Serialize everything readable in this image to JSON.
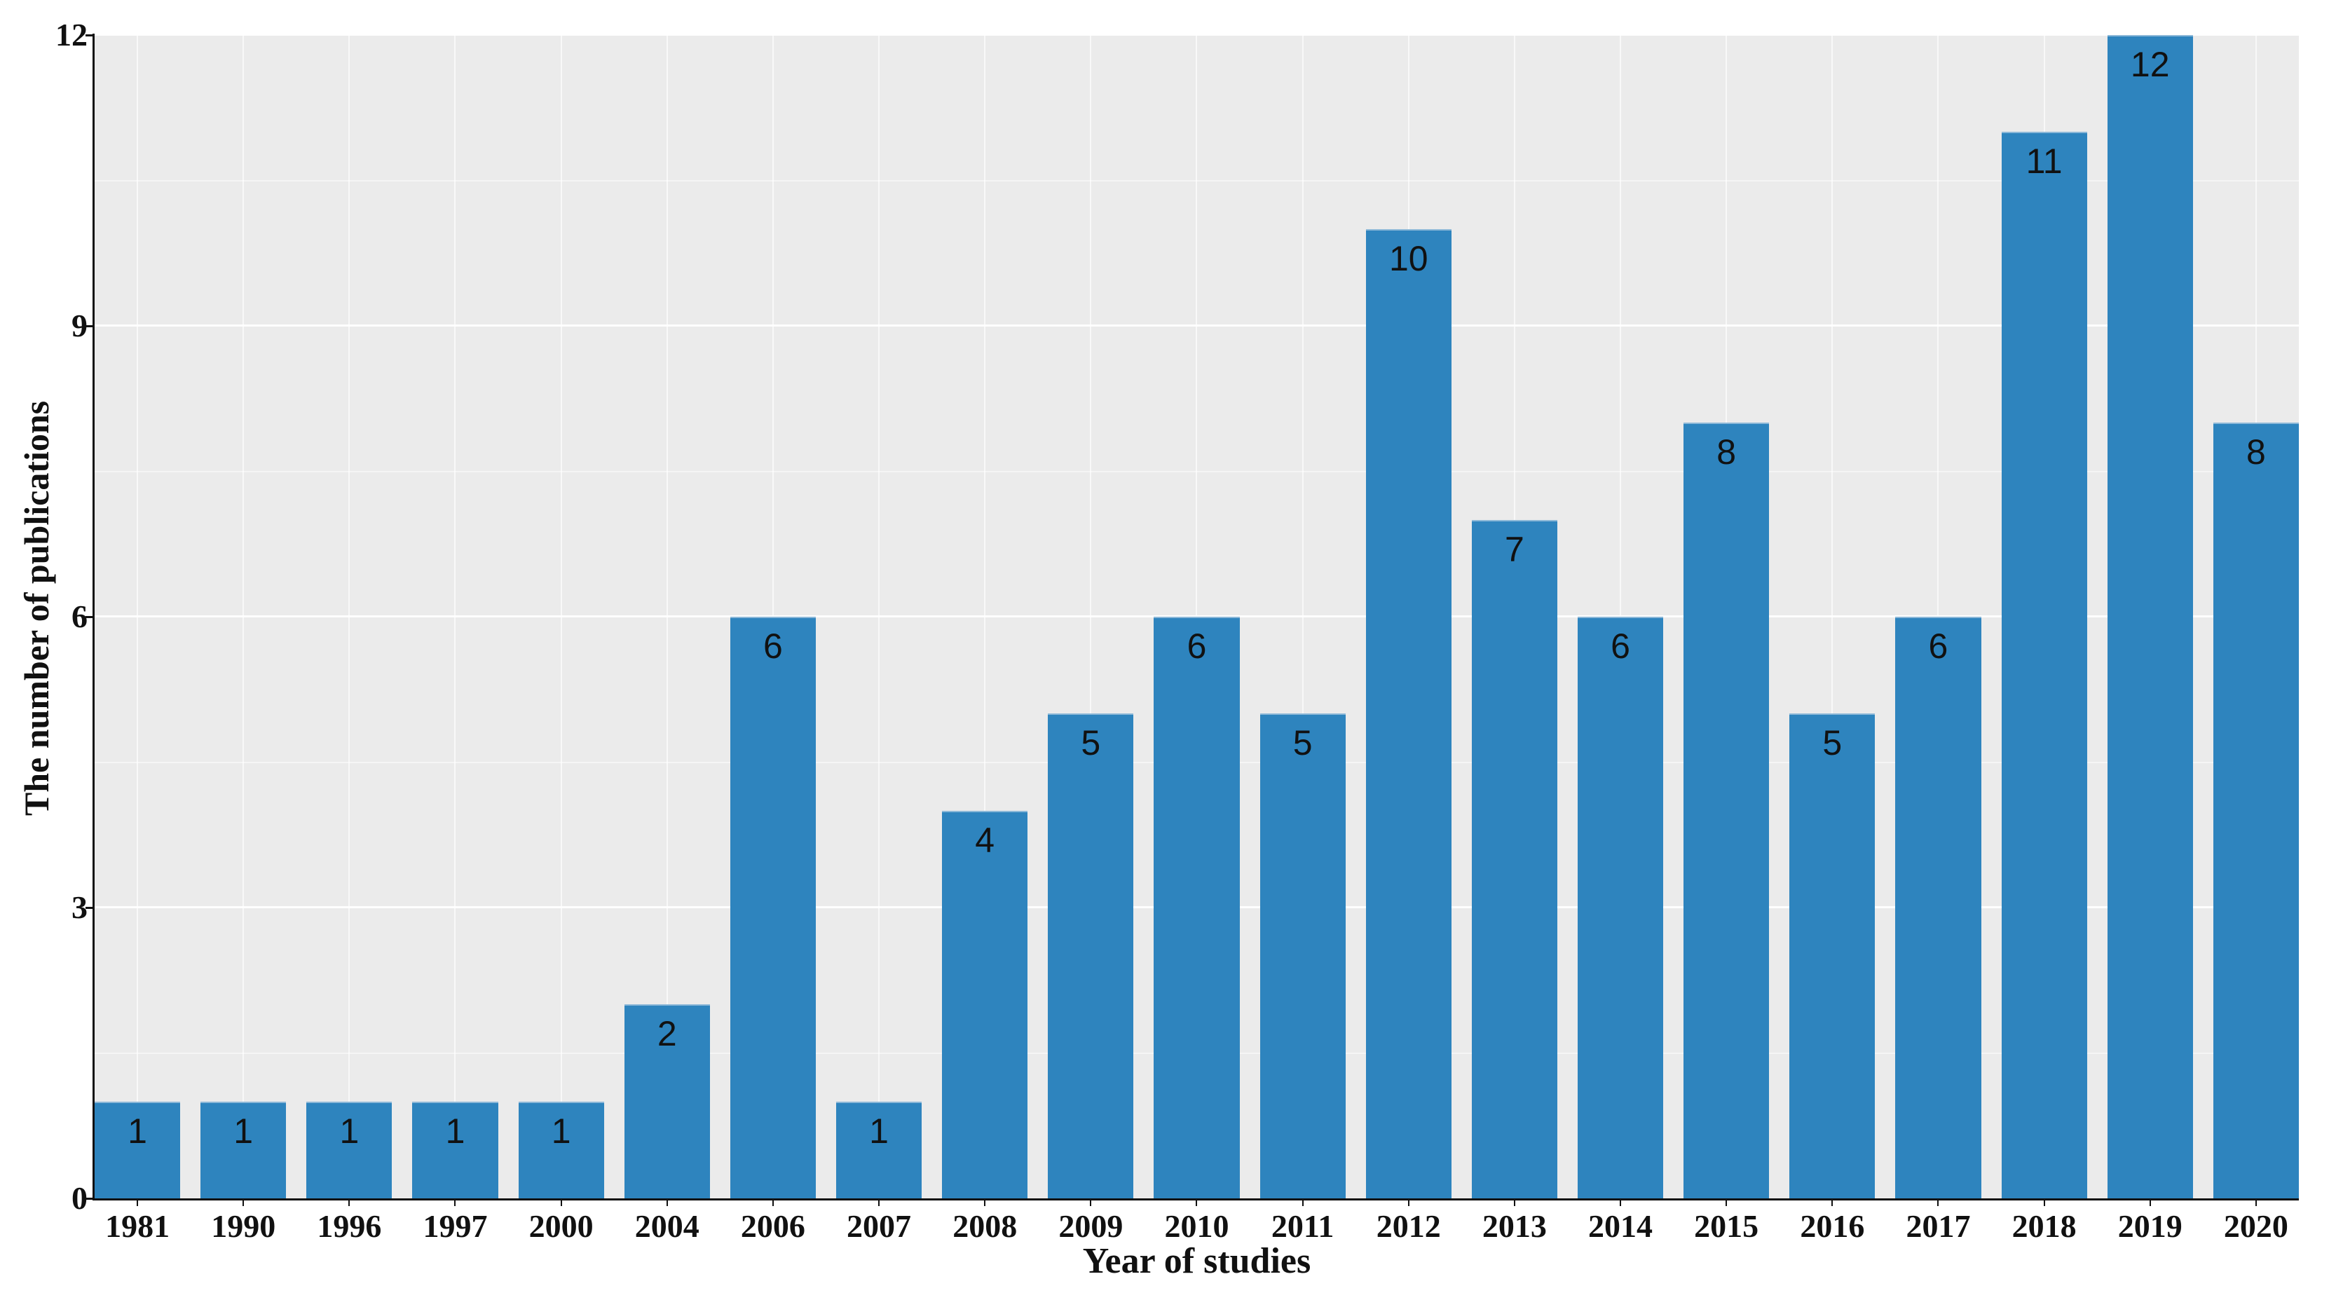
{
  "chart_data": {
    "type": "bar",
    "title": "",
    "xlabel": "Year of studies",
    "ylabel": "The number of publications",
    "categories": [
      "1981",
      "1990",
      "1996",
      "1997",
      "2000",
      "2004",
      "2006",
      "2007",
      "2008",
      "2009",
      "2010",
      "2011",
      "2012",
      "2013",
      "2014",
      "2015",
      "2016",
      "2017",
      "2018",
      "2019",
      "2020"
    ],
    "values": [
      1,
      1,
      1,
      1,
      1,
      2,
      6,
      1,
      4,
      5,
      6,
      5,
      10,
      7,
      6,
      8,
      5,
      6,
      11,
      12,
      8
    ],
    "bar_value_labels": [
      "1",
      "1",
      "1",
      "1",
      "1",
      "2",
      "6",
      "1",
      "4",
      "5",
      "6",
      "5",
      "10",
      "7",
      "6",
      "8",
      "5",
      "6",
      "11",
      "12",
      "8"
    ],
    "ylim": [
      0,
      12
    ],
    "yticks": [
      0,
      3,
      6,
      9,
      12
    ],
    "ytick_labels": [
      "0",
      "3",
      "6",
      "9",
      "12"
    ],
    "minor_yticks": [
      1.5,
      4.5,
      7.5,
      10.5
    ],
    "legend": "none",
    "grid": "white horizontal major and minor lines, faint white vertical line at each category center",
    "colors": {
      "bar": "#2E84BE",
      "bar_top_edge": "#8CB8D8",
      "plot_background": "#EBEBEB",
      "page_background": "#FFFFFF",
      "grid_major": "rgba(255,255,255,0.92)",
      "grid_minor": "rgba(255,255,255,0.48)",
      "axis_and_text": "#111111"
    }
  }
}
